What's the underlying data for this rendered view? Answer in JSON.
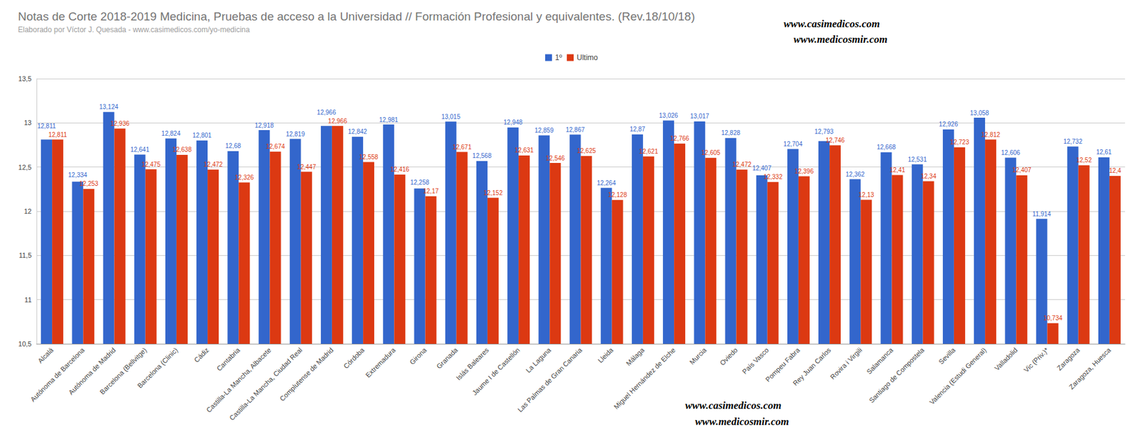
{
  "chart_data": {
    "type": "bar",
    "title": "Notas de Corte 2018-2019 Medicina, Pruebas de acceso a la Universidad // Formación Profesional y equivalentes. (Rev.18/10/18)",
    "subtitle": "Elaborado por Víctor J. Quesada - www.casimedicos.com/yo-medicina",
    "annotations": [
      "www.casimedicos.com",
      "www.medicosmir.com",
      "www.casimedicos.com",
      "www.medicosmir.com"
    ],
    "categories": [
      "Alcalá",
      "Autónoma de Barcelona",
      "Autónoma de Madrid",
      "Barcelona (Bellvitge)",
      "Barcelona (Clinic)",
      "Cádiz",
      "Cantabria",
      "Castilla-La Mancha, Albacete",
      "Castilla-La Mancha, Ciudad Real",
      "Complutense de Madrid",
      "Córdoba",
      "Extremadura",
      "Girona",
      "Granada",
      "Islás Baleares",
      "Jaume I de Castellón",
      "La Laguna",
      "Las Palmas de Gran Canaria",
      "Lleida",
      "Málaga",
      "Miguel Hernández de Elche",
      "Murcia",
      "Oviedo",
      "País Vasco",
      "Pompeu Fabra",
      "Rey Juan Carlos",
      "Rovira i Virgili",
      "Salamanca",
      "Santiago de Compostela",
      "Sevilla",
      "Valencia (Estudi General)",
      "Valladolid",
      "Vic (Priv.)*",
      "Zaragoza",
      "Zaragoza, Huesca"
    ],
    "series": [
      {
        "name": "1º",
        "color": "#3366cc",
        "values": [
          12.811,
          12.334,
          13.124,
          12.641,
          12.824,
          12.801,
          12.68,
          12.918,
          12.819,
          12.966,
          12.842,
          12.981,
          12.258,
          13.015,
          12.568,
          12.948,
          12.859,
          12.867,
          12.264,
          12.87,
          13.026,
          13.017,
          12.828,
          12.407,
          12.704,
          12.793,
          12.362,
          12.668,
          12.531,
          12.926,
          13.058,
          12.606,
          11.914,
          12.732,
          12.61
        ],
        "value_labels": [
          "12,811",
          "12,334",
          "13,124",
          "12,641",
          "12,824",
          "12,801",
          "12,68",
          "12,918",
          "12,819",
          "12,966",
          "12,842",
          "12,981",
          "12,258",
          "13,015",
          "12,568",
          "12,948",
          "12,859",
          "12,867",
          "12,264",
          "12,87",
          "13,026",
          "13,017",
          "12,828",
          "12,407",
          "12,704",
          "12,793",
          "12,362",
          "12,668",
          "12,531",
          "12,926",
          "13,058",
          "12,606",
          "11,914",
          "12,732",
          "12,61"
        ]
      },
      {
        "name": "Ultimo",
        "color": "#dc3912",
        "values": [
          12.811,
          12.253,
          12.936,
          12.475,
          12.638,
          12.472,
          12.326,
          12.674,
          12.447,
          12.966,
          12.558,
          12.416,
          12.17,
          12.671,
          12.152,
          12.631,
          12.546,
          12.625,
          12.128,
          12.621,
          12.766,
          12.605,
          12.472,
          12.332,
          12.396,
          12.746,
          12.13,
          12.41,
          12.34,
          12.723,
          12.812,
          12.407,
          10.734,
          12.52,
          12.4
        ],
        "value_labels": [
          "12,811",
          "12,253",
          "12,936",
          "12,475",
          "12,638",
          "12,472",
          "12,326",
          "12,674",
          "12,447",
          "12,966",
          "12,558",
          "12,416",
          "12,17",
          "12,671",
          "12,152",
          "12,631",
          "12,546",
          "12,625",
          "12,128",
          "12,621",
          "12,766",
          "12,605",
          "12,472",
          "12,332",
          "12,396",
          "12,746",
          "12,13",
          "12,41",
          "12,34",
          "12,723",
          "12,812",
          "12,407",
          "10,734",
          "12,52",
          "12,4"
        ]
      }
    ],
    "ylim": [
      10.5,
      13.5
    ],
    "yticks": [
      {
        "value": 10.5,
        "label": "10,5"
      },
      11,
      {
        "value": 11.5,
        "label": "11,5"
      },
      12,
      {
        "value": 12.5,
        "label": "12,5"
      },
      13,
      {
        "value": 13.5,
        "label": "13,5"
      }
    ],
    "grid": true,
    "legend": "top",
    "data_labels": true
  }
}
